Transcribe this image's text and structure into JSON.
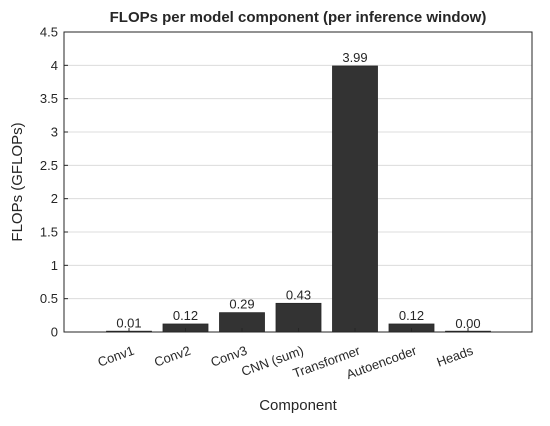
{
  "chart_data": {
    "type": "bar",
    "title": "FLOPs per model component (per inference window)",
    "xlabel": "Component",
    "ylabel": "FLOPs (GFLOPs)",
    "categories": [
      "Conv1",
      "Conv2",
      "Conv3",
      "CNN (sum)",
      "Transformer",
      "Autoencoder",
      "Heads"
    ],
    "values": [
      0.01,
      0.12,
      0.29,
      0.43,
      3.99,
      0.12,
      0.0
    ],
    "data_labels": [
      "0.01",
      "0.12",
      "0.29",
      "0.43",
      "3.99",
      "0.12",
      "0.00"
    ],
    "ylim": [
      0,
      4.5
    ],
    "yticks": [
      0,
      0.5,
      1,
      1.5,
      2,
      2.5,
      3,
      3.5,
      4,
      4.5
    ],
    "ytick_labels": [
      "0",
      "0.5",
      "1",
      "1.5",
      "2",
      "2.5",
      "3",
      "3.5",
      "4",
      "4.5"
    ],
    "grid": true,
    "bar_color": "#333333",
    "label_rotation_deg": -20
  }
}
